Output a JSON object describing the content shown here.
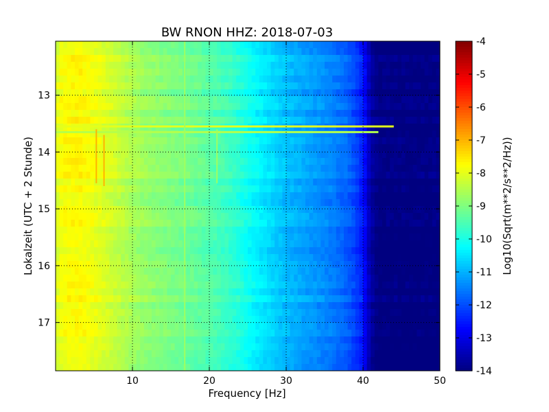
{
  "chart_data": {
    "type": "heatmap",
    "title": "BW RNON HHZ: 2018-07-03",
    "xlabel": "Frequency [Hz]",
    "ylabel": "Lokalzeit (UTC + 2 Stunde)",
    "xlim": [
      0,
      50
    ],
    "ylim": [
      12.05,
      17.85
    ],
    "y_inverted": true,
    "x_ticks": [
      10,
      20,
      30,
      40,
      50
    ],
    "y_ticks": [
      13,
      14,
      15,
      16,
      17
    ],
    "grid": true,
    "colormap": "jet",
    "colorbar": {
      "label": "Log10(Sqrt(m**2/s**2/Hz))",
      "range": [
        -14,
        -4
      ],
      "ticks": [
        -4,
        -5,
        -6,
        -7,
        -8,
        -9,
        -10,
        -11,
        -12,
        -13,
        -14
      ]
    },
    "spectrum_profile": {
      "frequency_hz": [
        0,
        0.5,
        1,
        3,
        5,
        8,
        10,
        12,
        15,
        18,
        20,
        22,
        24,
        26,
        28,
        30,
        32,
        34,
        36,
        38,
        39,
        40,
        40.5,
        41,
        42,
        50
      ],
      "log10_amplitude": [
        -8.2,
        -7.9,
        -7.8,
        -7.7,
        -7.9,
        -8.3,
        -8.6,
        -8.8,
        -9.0,
        -9.2,
        -9.4,
        -9.6,
        -9.9,
        -10.3,
        -10.6,
        -10.9,
        -11.1,
        -11.3,
        -11.5,
        -11.8,
        -12.1,
        -12.5,
        -13.1,
        -13.6,
        -14.0,
        -14.0
      ]
    },
    "features": [
      {
        "type": "horizontal_line",
        "time": 13.55,
        "freq_range": [
          0,
          44
        ],
        "value": -8.0
      },
      {
        "type": "horizontal_line",
        "time": 13.65,
        "freq_range": [
          0,
          42
        ],
        "value": -8.5
      },
      {
        "type": "vertical_line",
        "freq": 5.3,
        "time_range": [
          13.6,
          14.55
        ],
        "value": -7.0
      },
      {
        "type": "vertical_line",
        "freq": 6.3,
        "time_range": [
          13.7,
          14.6
        ],
        "value": -7.0
      },
      {
        "type": "vertical_line",
        "freq": 21,
        "time_range": [
          13.6,
          14.55
        ],
        "value": -8.7
      },
      {
        "type": "vertical_line",
        "freq": 16.8,
        "time_range": [
          12.05,
          17.85
        ],
        "value": -8.7
      }
    ]
  }
}
